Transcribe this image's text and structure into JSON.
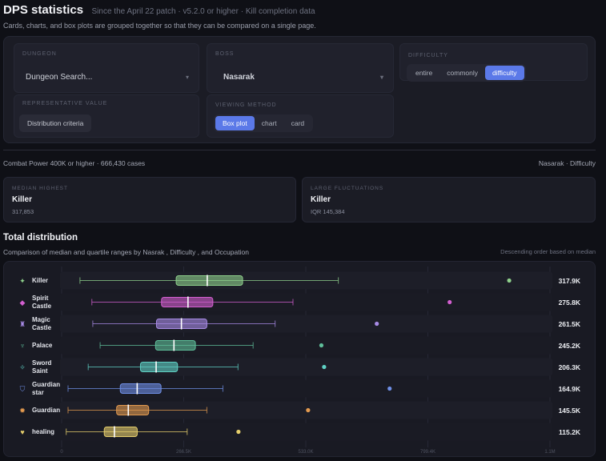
{
  "header": {
    "title": "DPS statistics",
    "subtitle": "Since the April 22 patch · v5.2.0 or higher · Kill completion data",
    "description": "Cards, charts, and box plots are grouped together so that they can be compared on a single page."
  },
  "filters": {
    "dungeon": {
      "label": "DUNGEON",
      "value": "Dungeon Search..."
    },
    "boss": {
      "label": "BOSS",
      "value": "Nasarak"
    },
    "difficulty": {
      "label": "DIFFICULTY",
      "options": [
        "entire",
        "commonly",
        "difficulty"
      ],
      "selected": "difficulty"
    },
    "representative": {
      "label": "REPRESENTATIVE VALUE",
      "value": "Distribution criteria"
    },
    "viewing": {
      "label": "VIEWING METHOD",
      "options": [
        "Box plot",
        "chart",
        "card"
      ],
      "selected": "Box plot"
    }
  },
  "summary": {
    "left": "Combat Power 400K or higher · 666,430 cases",
    "right": "Nasarak · Difficulty"
  },
  "cards": [
    {
      "label": "MEDIAN HIGHEST",
      "value": "Killer",
      "note": "317,853"
    },
    {
      "label": "LARGE FLUCTUATIONS",
      "value": "Killer",
      "note": "IQR 145,384"
    }
  ],
  "section": {
    "title": "Total distribution",
    "description": "Comparison of median and quartile ranges by Nasrak , Difficulty , and Occupation",
    "sort_note": "Descending order based on median"
  },
  "chart_data": {
    "type": "boxplot",
    "x_ticks": [
      "0",
      "266.5K",
      "533.0K",
      "799.4K",
      "1.1M"
    ],
    "xlim": [
      0,
      1066000
    ],
    "rows": [
      {
        "name": "Killer",
        "icon": "killer-icon",
        "color": "#8fd18c",
        "min": 40000,
        "q1": 250000,
        "median": 317853,
        "q3": 395000,
        "max": 604000,
        "outlier": 977000,
        "label": "317.9K"
      },
      {
        "name": "Spirit Castle",
        "icon": "spirit-castle-icon",
        "color": "#d35fd0",
        "min": 66000,
        "q1": 218000,
        "median": 275800,
        "q3": 330000,
        "max": 505000,
        "outlier": 847000,
        "label": "275.8K"
      },
      {
        "name": "Magic Castle",
        "icon": "magic-castle-icon",
        "color": "#a88be6",
        "min": 68000,
        "q1": 207000,
        "median": 261500,
        "q3": 317000,
        "max": 466000,
        "outlier": 688000,
        "label": "261.5K"
      },
      {
        "name": "Palace",
        "icon": "palace-icon",
        "color": "#5fbf9a",
        "min": 84000,
        "q1": 205000,
        "median": 245200,
        "q3": 292000,
        "max": 418000,
        "outlier": 567000,
        "label": "245.2K"
      },
      {
        "name": "Sword Saint",
        "icon": "sword-saint-icon",
        "color": "#5fd1c4",
        "min": 58000,
        "q1": 172000,
        "median": 206300,
        "q3": 253000,
        "max": 385000,
        "outlier": 573000,
        "label": "206.3K"
      },
      {
        "name": "Guardian star",
        "icon": "guardian-star-icon",
        "color": "#6f8fe6",
        "min": 14000,
        "q1": 128000,
        "median": 164900,
        "q3": 217000,
        "max": 352000,
        "outlier": 716000,
        "label": "164.9K"
      },
      {
        "name": "Guardian",
        "icon": "guardian-icon",
        "color": "#e39a4f",
        "min": 14000,
        "q1": 120000,
        "median": 145500,
        "q3": 190000,
        "max": 317000,
        "outlier": 538000,
        "label": "145.5K"
      },
      {
        "name": "healing",
        "icon": "healing-icon",
        "color": "#e6cf6c",
        "min": 10000,
        "q1": 93000,
        "median": 115200,
        "q3": 165000,
        "max": 274000,
        "outlier": 386000,
        "label": "115.2K"
      }
    ]
  }
}
